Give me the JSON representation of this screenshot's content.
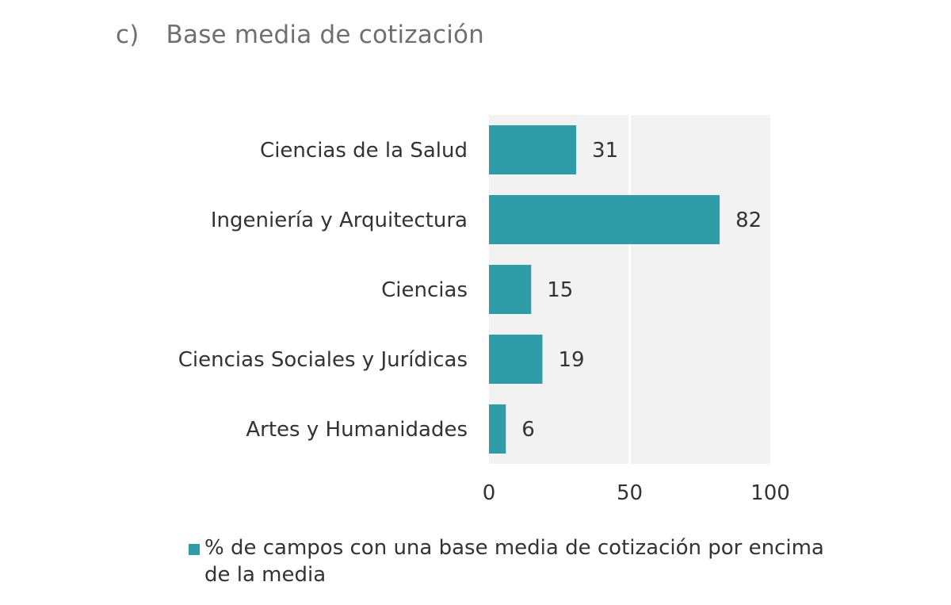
{
  "title": {
    "letter": "c)",
    "text": "Base media de cotización"
  },
  "colors": {
    "bar": "#2e9da8",
    "plot_background": "#f2f2f2",
    "gridline": "#ffffff"
  },
  "chart_data": {
    "type": "bar",
    "orientation": "horizontal",
    "categories": [
      "Ciencias de la Salud",
      "Ingeniería y Arquitectura",
      "Ciencias",
      "Ciencias Sociales y Jurídicas",
      "Artes y Humanidades"
    ],
    "series": [
      {
        "name": "% de campos con una base media de cotización por encima de la media",
        "values": [
          31,
          82,
          15,
          19,
          6
        ]
      }
    ],
    "value_labels": [
      "31",
      "82",
      "15",
      "19",
      "6"
    ],
    "xlim": [
      0,
      100
    ],
    "xticks": [
      0,
      50,
      100
    ],
    "xtick_labels": [
      "0",
      "50",
      "100"
    ],
    "grid": true,
    "legend_position": "bottom-left"
  }
}
